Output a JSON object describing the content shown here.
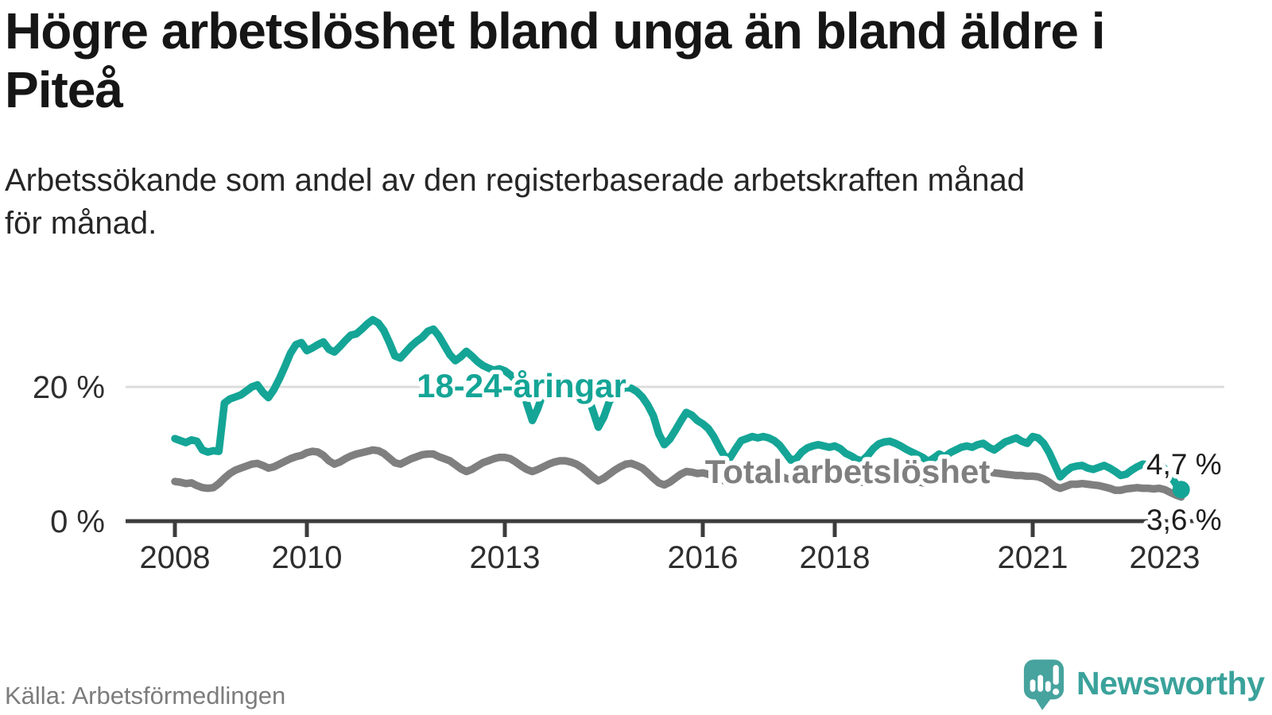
{
  "page": {
    "title_lines": [
      "Högre arbetslöshet bland unga än bland äldre i",
      "Piteå"
    ],
    "subtitle_lines": [
      "Arbetssökande som andel av den registerbaserade arbetskraften månad",
      "för månad."
    ],
    "source": "Källa: Arbetsförmedlingen",
    "branding": {
      "name": "Newsworthy",
      "icon": "newsworthy-speech-bubble-chart-icon",
      "logo_color": "#47a39e",
      "wordmark_color": "#3aa29b"
    }
  },
  "colors": {
    "accent_teal": "#14a596",
    "line_gray": "#7f7f7f",
    "axis": "#3c3c3c",
    "gridline": "#dcdcdc",
    "text_dark": "#1d1d1d",
    "text_muted": "#7c7c7c"
  },
  "chart_data": {
    "type": "line",
    "title": "Högre arbetslöshet bland unga än bland äldre i Piteå",
    "unit": "%",
    "x": {
      "start": "2008-01",
      "end": "2023-04",
      "interval": "monthly",
      "ticks": [
        {
          "year": 2008,
          "label": "2008"
        },
        {
          "year": 2010,
          "label": "2010"
        },
        {
          "year": 2013,
          "label": "2013"
        },
        {
          "year": 2016,
          "label": "2016"
        },
        {
          "year": 2018,
          "label": "2018"
        },
        {
          "year": 2021,
          "label": "2021"
        },
        {
          "year": 2023,
          "label": "2023"
        }
      ]
    },
    "y": {
      "range": [
        0,
        32
      ],
      "ticks": [
        {
          "value": 0,
          "label": "0 %"
        },
        {
          "value": 20,
          "label": "20 %"
        }
      ]
    },
    "legend": "inline-labels",
    "series": [
      {
        "name": "18-24-åringar",
        "color": "#14a596",
        "end_value": 4.7,
        "end_label": "4,7 %",
        "end_dot": true,
        "values": [
          12.3,
          12.0,
          11.7,
          12.1,
          11.9,
          10.6,
          10.3,
          10.5,
          10.4,
          17.6,
          18.2,
          18.5,
          18.8,
          19.4,
          20.0,
          20.3,
          19.2,
          18.4,
          19.6,
          21.2,
          23.0,
          25.0,
          26.3,
          26.6,
          25.4,
          25.8,
          26.3,
          26.7,
          25.6,
          25.2,
          26.0,
          26.9,
          27.7,
          27.9,
          28.6,
          29.4,
          30.0,
          29.5,
          28.4,
          26.6,
          24.6,
          24.3,
          25.2,
          26.1,
          26.8,
          27.4,
          28.3,
          28.6,
          27.6,
          26.2,
          24.8,
          23.9,
          24.5,
          25.3,
          24.6,
          23.8,
          23.2,
          22.8,
          22.5,
          22.7,
          22.4,
          21.8,
          21.0,
          20.3,
          17.5,
          15.0,
          16.8,
          19.2,
          20.0,
          20.6,
          21.0,
          21.2,
          21.0,
          20.4,
          19.7,
          18.9,
          16.5,
          14.0,
          15.5,
          17.8,
          18.9,
          19.5,
          19.9,
          19.8,
          19.3,
          18.5,
          17.3,
          15.7,
          13.0,
          11.4,
          12.2,
          13.5,
          14.9,
          16.2,
          15.8,
          15.0,
          14.5,
          13.8,
          12.6,
          11.0,
          9.6,
          9.5,
          10.8,
          12.0,
          12.3,
          12.6,
          12.4,
          12.6,
          12.4,
          12.0,
          11.3,
          10.2,
          9.1,
          9.3,
          10.3,
          10.9,
          11.2,
          11.4,
          11.2,
          11.0,
          11.2,
          10.8,
          10.1,
          9.7,
          9.2,
          9.0,
          9.8,
          10.8,
          11.5,
          11.8,
          11.9,
          11.6,
          11.2,
          10.7,
          10.3,
          9.9,
          9.5,
          8.9,
          9.4,
          10.0,
          9.6,
          10.2,
          10.6,
          11.0,
          11.2,
          11.0,
          11.4,
          11.6,
          11.0,
          10.6,
          11.2,
          11.8,
          12.1,
          12.4,
          11.9,
          11.6,
          12.6,
          12.4,
          11.6,
          10.2,
          8.4,
          6.6,
          7.4,
          8.0,
          8.2,
          8.3,
          7.9,
          7.7,
          8.0,
          8.3,
          7.9,
          7.4,
          6.8,
          7.0,
          7.6,
          8.1,
          8.5,
          8.4,
          8.2,
          8.4,
          7.8,
          6.8,
          5.6,
          4.7
        ]
      },
      {
        "name": "Total arbetslöshet",
        "color": "#7f7f7f",
        "end_value": 3.6,
        "end_label": "3,6 %",
        "end_dot": false,
        "values": [
          5.9,
          5.8,
          5.6,
          5.7,
          5.3,
          5.0,
          4.9,
          5.0,
          5.6,
          6.4,
          7.1,
          7.6,
          7.9,
          8.2,
          8.5,
          8.6,
          8.3,
          7.9,
          8.1,
          8.5,
          8.9,
          9.3,
          9.6,
          9.8,
          10.2,
          10.4,
          10.3,
          9.8,
          9.0,
          8.5,
          8.8,
          9.3,
          9.7,
          10.0,
          10.2,
          10.4,
          10.6,
          10.5,
          10.1,
          9.4,
          8.7,
          8.5,
          8.9,
          9.3,
          9.6,
          9.9,
          10.0,
          10.0,
          9.6,
          9.3,
          9.0,
          8.4,
          7.8,
          7.4,
          7.7,
          8.2,
          8.7,
          9.0,
          9.3,
          9.5,
          9.5,
          9.3,
          8.8,
          8.2,
          7.7,
          7.4,
          7.7,
          8.1,
          8.5,
          8.8,
          9.0,
          9.0,
          8.8,
          8.5,
          8.0,
          7.3,
          6.6,
          6.0,
          6.4,
          7.0,
          7.6,
          8.1,
          8.5,
          8.6,
          8.3,
          7.9,
          7.2,
          6.4,
          5.7,
          5.4,
          5.8,
          6.4,
          7.0,
          7.4,
          7.3,
          7.1,
          7.2,
          7.0,
          6.6,
          6.2,
          6.0,
          6.1,
          6.5,
          6.9,
          7.2,
          7.4,
          7.4,
          7.3,
          7.3,
          7.1,
          6.8,
          6.4,
          6.2,
          6.2,
          6.5,
          6.8,
          7.0,
          7.1,
          7.0,
          6.9,
          6.9,
          6.7,
          6.4,
          6.1,
          5.9,
          5.8,
          6.0,
          6.3,
          6.5,
          6.6,
          6.6,
          6.5,
          6.5,
          6.3,
          6.1,
          5.9,
          5.7,
          5.6,
          5.8,
          6.0,
          6.2,
          6.3,
          6.4,
          6.4,
          6.5,
          6.6,
          6.9,
          7.2,
          7.3,
          7.2,
          7.1,
          7.0,
          6.9,
          6.8,
          6.8,
          6.7,
          6.7,
          6.6,
          6.3,
          5.8,
          5.2,
          4.9,
          5.2,
          5.5,
          5.5,
          5.6,
          5.5,
          5.4,
          5.3,
          5.1,
          4.9,
          4.6,
          4.6,
          4.8,
          4.9,
          5.0,
          4.9,
          4.9,
          4.8,
          4.9,
          4.7,
          4.3,
          3.9,
          3.6
        ]
      }
    ]
  }
}
